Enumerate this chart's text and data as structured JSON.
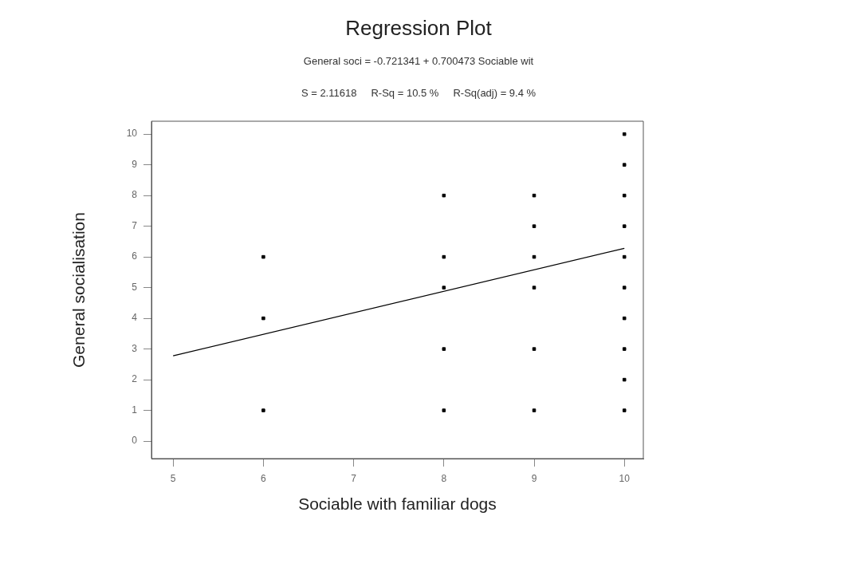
{
  "chart_data": {
    "type": "scatter",
    "title": "Regression Plot",
    "subtitle": "General soci = -0.721341 + 0.700473 Sociable wit",
    "annotations": [
      "S = 2.11618     R-Sq = 10.5 %     R-Sq(adj) = 9.4 %"
    ],
    "xlabel": "Sociable with familiar dogs",
    "ylabel": "General socialisation",
    "series": [
      {
        "color": "#000000",
        "marker": "square",
        "x": [
          6,
          6,
          6,
          8,
          8,
          8,
          8,
          8,
          9,
          9,
          9,
          9,
          9,
          9,
          10,
          10,
          10,
          10,
          10,
          10,
          10,
          10,
          10,
          10
        ],
        "values": [
          1,
          4,
          6,
          1,
          3,
          5,
          6,
          8,
          1,
          3,
          5,
          6,
          7,
          8,
          1,
          2,
          3,
          4,
          5,
          6,
          7,
          8,
          9,
          10
        ]
      },
      {
        "type": "line",
        "color": "#000000",
        "marker": "none",
        "line_style": "solid",
        "x": [
          5,
          10
        ],
        "values": [
          2.78,
          6.28
        ]
      }
    ],
    "xlim": [
      4.76,
      10.21
    ],
    "xticks": [
      5,
      6,
      7,
      8,
      9,
      10
    ],
    "ylim": [
      -0.57,
      10.42
    ],
    "yticks": [
      0,
      1,
      2,
      3,
      4,
      5,
      6,
      7,
      8,
      9,
      10
    ],
    "grid": false,
    "legend": false
  }
}
